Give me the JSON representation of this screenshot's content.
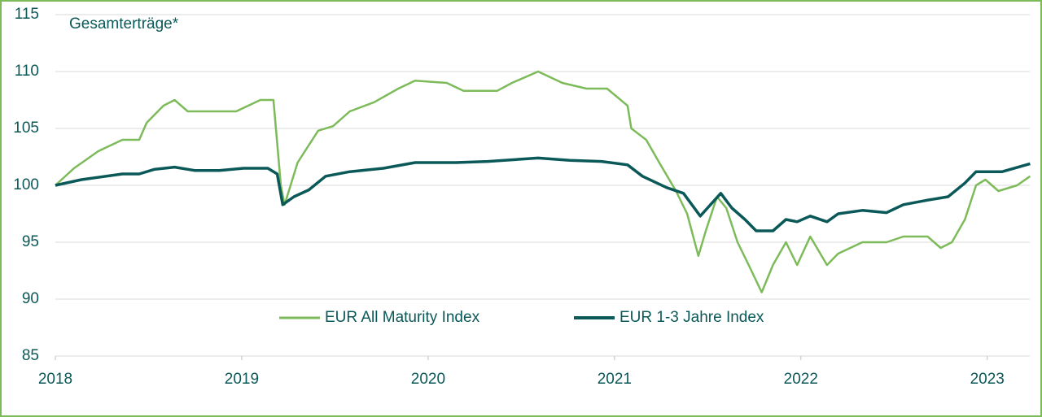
{
  "chart_data": {
    "type": "line",
    "title": "Gesamterträge*",
    "xlim": [
      2018,
      2023.25
    ],
    "xticks": [
      2018,
      2019,
      2020,
      2021,
      2022,
      2023
    ],
    "ylim": [
      85,
      115
    ],
    "yticks": [
      85,
      90,
      95,
      100,
      105,
      110,
      115
    ],
    "grid": true,
    "legend": "bottom",
    "series": [
      {
        "name": "EUR All Maturity Index",
        "color": "#7dbb5a",
        "x": [
          2018.0,
          2018.1,
          2018.23,
          2018.36,
          2018.45,
          2018.49,
          2018.58,
          2018.64,
          2018.71,
          2018.84,
          2018.97,
          2019.1,
          2019.17,
          2019.21,
          2019.23,
          2019.3,
          2019.41,
          2019.49,
          2019.58,
          2019.71,
          2019.84,
          2019.93,
          2020.1,
          2020.19,
          2020.37,
          2020.45,
          2020.59,
          2020.72,
          2020.85,
          2020.96,
          2021.07,
          2021.09,
          2021.17,
          2021.24,
          2021.33,
          2021.39,
          2021.45,
          2021.49,
          2021.55,
          2021.6,
          2021.66,
          2021.72,
          2021.79,
          2021.85,
          2021.92,
          2021.98,
          2022.05,
          2022.14,
          2022.2,
          2022.33,
          2022.46,
          2022.55,
          2022.68,
          2022.75,
          2022.81,
          2022.88,
          2022.94,
          2022.99,
          2023.06,
          2023.16,
          2023.23
        ],
        "values": [
          100,
          101.5,
          103,
          104,
          104,
          105.5,
          107,
          107.5,
          106.5,
          106.5,
          106.5,
          107.5,
          107.5,
          100,
          98.3,
          102,
          104.8,
          105.2,
          106.5,
          107.3,
          108.5,
          109.2,
          109,
          108.3,
          108.3,
          109,
          110,
          109,
          108.5,
          108.5,
          107,
          105,
          104,
          102,
          99.5,
          97.5,
          93.8,
          96,
          99,
          98,
          95,
          93,
          90.6,
          93,
          95,
          93,
          95.5,
          93,
          94,
          95,
          95,
          95.5,
          95.5,
          94.5,
          95,
          97,
          100,
          100.5,
          99.5,
          100,
          100.8
        ]
      },
      {
        "name": "EUR 1-3 Jahre Index",
        "color": "#0b5858",
        "x": [
          2018.0,
          2018.14,
          2018.36,
          2018.45,
          2018.53,
          2018.64,
          2018.75,
          2018.88,
          2019.01,
          2019.14,
          2019.19,
          2019.22,
          2019.28,
          2019.36,
          2019.45,
          2019.58,
          2019.76,
          2019.93,
          2020.15,
          2020.32,
          2020.59,
          2020.76,
          2020.93,
          2021.07,
          2021.15,
          2021.28,
          2021.37,
          2021.46,
          2021.57,
          2021.63,
          2021.7,
          2021.76,
          2021.85,
          2021.92,
          2021.98,
          2022.05,
          2022.14,
          2022.2,
          2022.33,
          2022.46,
          2022.55,
          2022.68,
          2022.79,
          2022.88,
          2022.94,
          2023.08,
          2023.23
        ],
        "values": [
          100,
          100.5,
          101,
          101,
          101.4,
          101.6,
          101.3,
          101.3,
          101.5,
          101.5,
          101,
          98.3,
          99,
          99.6,
          100.8,
          101.2,
          101.5,
          102,
          102,
          102.1,
          102.4,
          102.2,
          102.1,
          101.8,
          100.8,
          99.8,
          99.3,
          97.3,
          99.3,
          98,
          97,
          96,
          96,
          97,
          96.8,
          97.3,
          96.8,
          97.5,
          97.8,
          97.6,
          98.3,
          98.7,
          99,
          100.2,
          101.2,
          101.2,
          101.9
        ]
      }
    ]
  }
}
